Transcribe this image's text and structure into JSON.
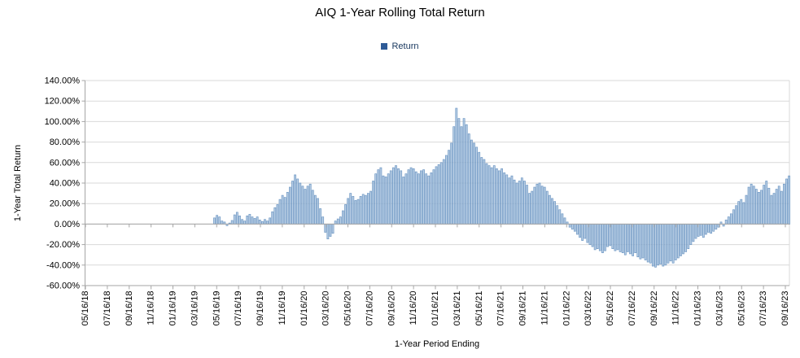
{
  "chart_data": {
    "type": "bar",
    "title": "AIQ 1-Year Rolling Total Return",
    "series_name": "Return",
    "xlabel": "1-Year Period Ending",
    "ylabel": "1-Year Total Return",
    "ylim": [
      -60,
      140
    ],
    "y_tick_step": 20,
    "y_tick_labels": [
      "140.00%",
      "120.00%",
      "100.00%",
      "80.00%",
      "60.00%",
      "40.00%",
      "20.00%",
      "0.00%",
      "-20.00%",
      "-40.00%",
      "-60.00%"
    ],
    "x_tick_labels": [
      "05/16/18",
      "07/16/18",
      "09/16/18",
      "11/16/18",
      "01/16/19",
      "03/16/19",
      "05/16/19",
      "07/16/19",
      "09/16/19",
      "11/16/19",
      "01/16/20",
      "03/16/20",
      "05/16/20",
      "07/16/20",
      "09/16/20",
      "11/16/20",
      "01/16/21",
      "03/16/21",
      "05/16/21",
      "07/16/21",
      "09/16/21",
      "11/16/21",
      "01/16/22",
      "03/16/22",
      "05/16/22",
      "07/16/22",
      "09/16/22",
      "11/16/22",
      "01/16/23",
      "03/16/23",
      "05/16/23",
      "07/16/23",
      "09/16/23"
    ],
    "grid": true,
    "legend_position": "top",
    "values_pct": [
      6,
      8.5,
      7,
      3,
      2,
      -1.5,
      1,
      3.5,
      9,
      11.5,
      8,
      4.5,
      3,
      8,
      9.5,
      7,
      5.5,
      7,
      4,
      2.5,
      4.5,
      3,
      6,
      12,
      16,
      19,
      24,
      28,
      26,
      31,
      36,
      42,
      48,
      44,
      40,
      37,
      34,
      37,
      39,
      33,
      28,
      25,
      15,
      7,
      -8,
      -14.5,
      -12,
      -9,
      3,
      5,
      7,
      13,
      19,
      25,
      30,
      27,
      23,
      24,
      27,
      29,
      28,
      30,
      32,
      42,
      49,
      53,
      55,
      47,
      46,
      49,
      52,
      55,
      57,
      54,
      52,
      46,
      49,
      53,
      55,
      54,
      51,
      49,
      52,
      53,
      49,
      47,
      50,
      53,
      56,
      58,
      60,
      63,
      67,
      72,
      79,
      95,
      113,
      103,
      95,
      103,
      97,
      88,
      82,
      79,
      75,
      70,
      65,
      63,
      59,
      57,
      55,
      57,
      54,
      52,
      54,
      50,
      48,
      45,
      47,
      43,
      40,
      42,
      45,
      42,
      38,
      30,
      32,
      36,
      39,
      40,
      37,
      36,
      32,
      28,
      25,
      22,
      18,
      14,
      10,
      6,
      2,
      -3,
      -5,
      -7,
      -10,
      -13,
      -16,
      -14,
      -18,
      -20,
      -22,
      -25,
      -24,
      -26,
      -28,
      -26,
      -22,
      -21,
      -24,
      -26,
      -25,
      -27,
      -28,
      -30,
      -27,
      -29,
      -31,
      -28,
      -32,
      -34,
      -33,
      -35,
      -37,
      -38,
      -41,
      -42,
      -40,
      -39,
      -41,
      -40,
      -38,
      -36,
      -38,
      -35,
      -33,
      -31,
      -29,
      -27,
      -24,
      -20,
      -17,
      -14,
      -12,
      -11,
      -13,
      -10,
      -8,
      -9,
      -7,
      -5,
      -3,
      2,
      -2,
      4,
      7,
      10,
      14,
      18,
      22,
      24,
      21,
      28,
      36,
      39,
      37,
      34,
      31,
      33,
      38,
      42,
      35,
      28,
      30,
      34,
      37,
      32,
      39,
      44,
      47
    ],
    "colors": {
      "bar_fill": "#A9C3DF",
      "bar_border": "#6C96C3",
      "grid": "#D9D9D9",
      "axis": "#A6A6A6",
      "legend_marker": "#2E5B97",
      "legend_text": "#17375E",
      "text": "#000000"
    }
  }
}
